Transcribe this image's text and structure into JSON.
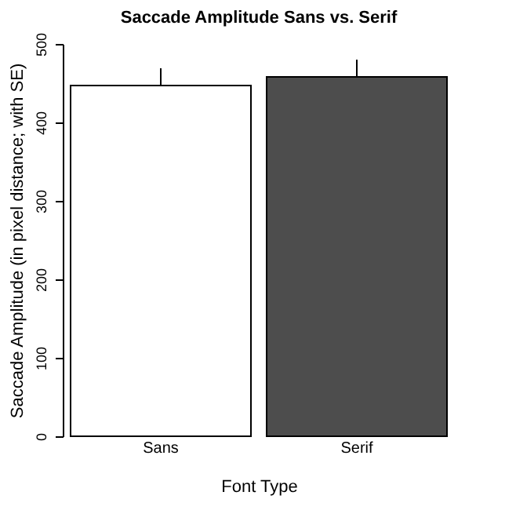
{
  "chart_data": {
    "type": "bar",
    "title": "Saccade Amplitude Sans vs. Serif",
    "xlabel": "Font Type",
    "ylabel": "Saccade Amplitude (in pixel distance; with SE)",
    "categories": [
      "Sans",
      "Serif"
    ],
    "values": [
      447,
      458
    ],
    "colors": [
      "#ffffff",
      "#4d4d4d"
    ],
    "errors": [
      22,
      22
    ],
    "ylim": [
      0,
      500
    ],
    "yticks": [
      0,
      100,
      200,
      300,
      400,
      500
    ],
    "grid": false
  }
}
